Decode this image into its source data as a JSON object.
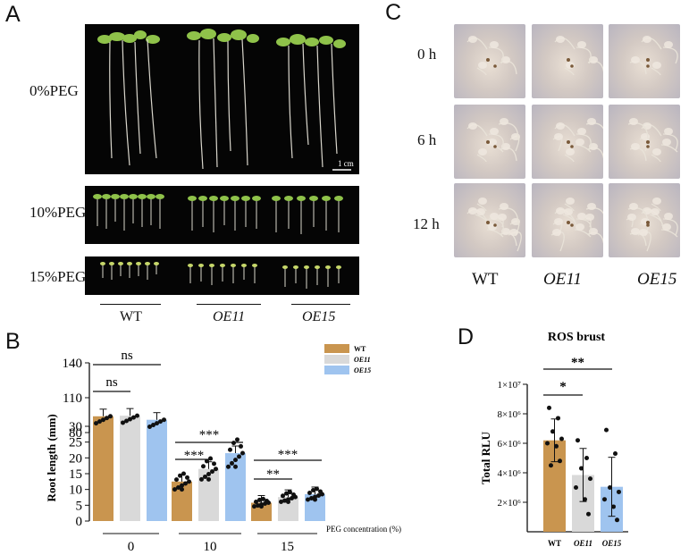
{
  "panels": {
    "a": "A",
    "b": "B",
    "c": "C",
    "d": "D"
  },
  "panel_a": {
    "rows": [
      "0%PEG",
      "10%PEG",
      "15%PEG"
    ],
    "scale_bar": "1 cm",
    "groups": [
      "WT",
      "OE11",
      "OE15"
    ]
  },
  "panel_c": {
    "rows": [
      "0 h",
      "6 h",
      "12 h"
    ],
    "cols": [
      "WT",
      "OE11",
      "OE15"
    ]
  },
  "colors": {
    "wt": "#c9954f",
    "oe11": "#d9d9d9",
    "oe15": "#9fc4ef"
  },
  "chart_data": [
    {
      "type": "bar",
      "panel": "B",
      "ylabel": "Root length (mm)",
      "xlabel": "PEG concentration (%)",
      "categories": [
        "0",
        "10",
        "15"
      ],
      "series": [
        {
          "name": "WT",
          "values": [
            94,
            12.5,
            5.8
          ]
        },
        {
          "name": "OE11",
          "values": [
            94.5,
            16.5,
            7.6
          ]
        },
        {
          "name": "OE15",
          "values": [
            91,
            21.5,
            8.5
          ]
        }
      ],
      "y_ticks_lower": [
        "0",
        "5",
        "10",
        "15",
        "20",
        "25",
        "30"
      ],
      "y_ticks_upper": [
        "80",
        "110",
        "140"
      ],
      "axis_break": true,
      "significance": [
        {
          "label": "ns",
          "group": "0",
          "between": [
            "WT",
            "OE11"
          ]
        },
        {
          "label": "ns",
          "group": "0",
          "between": [
            "WT",
            "OE15"
          ]
        },
        {
          "label": "***",
          "group": "10",
          "between": [
            "WT",
            "OE11"
          ]
        },
        {
          "label": "***",
          "group": "10",
          "between": [
            "WT",
            "OE15"
          ]
        },
        {
          "label": "**",
          "group": "15",
          "between": [
            "WT",
            "OE11"
          ]
        },
        {
          "label": "***",
          "group": "15",
          "between": [
            "WT",
            "OE15"
          ]
        }
      ],
      "legend": [
        "WT",
        "OE11",
        "OE15"
      ],
      "legend_position": "top-right"
    },
    {
      "type": "bar",
      "panel": "D",
      "title": "ROS brust",
      "ylabel": "Total RLU",
      "categories": [
        "WT",
        "OE11",
        "OE15"
      ],
      "values": [
        6200000,
        3850000,
        3050000
      ],
      "errors": [
        1450000,
        1800000,
        2000000
      ],
      "ylim": [
        0,
        10000000
      ],
      "y_ticks": [
        "2×10⁶",
        "4×10⁶",
        "6×10⁶",
        "8×10⁶",
        "1×10⁷"
      ],
      "points": [
        [
          8400000,
          7700000,
          6800000,
          6300000,
          6000000,
          5800000,
          4800000,
          4500000
        ],
        [
          6200000,
          5000000,
          4300000,
          3600000,
          3000000,
          2200000,
          1200000
        ],
        [
          6900000,
          5300000,
          3000000,
          2700000,
          2200000,
          1700000,
          800000
        ]
      ],
      "significance": [
        {
          "label": "*",
          "between": [
            "WT",
            "OE11"
          ]
        },
        {
          "label": "**",
          "between": [
            "WT",
            "OE15"
          ]
        }
      ]
    }
  ]
}
